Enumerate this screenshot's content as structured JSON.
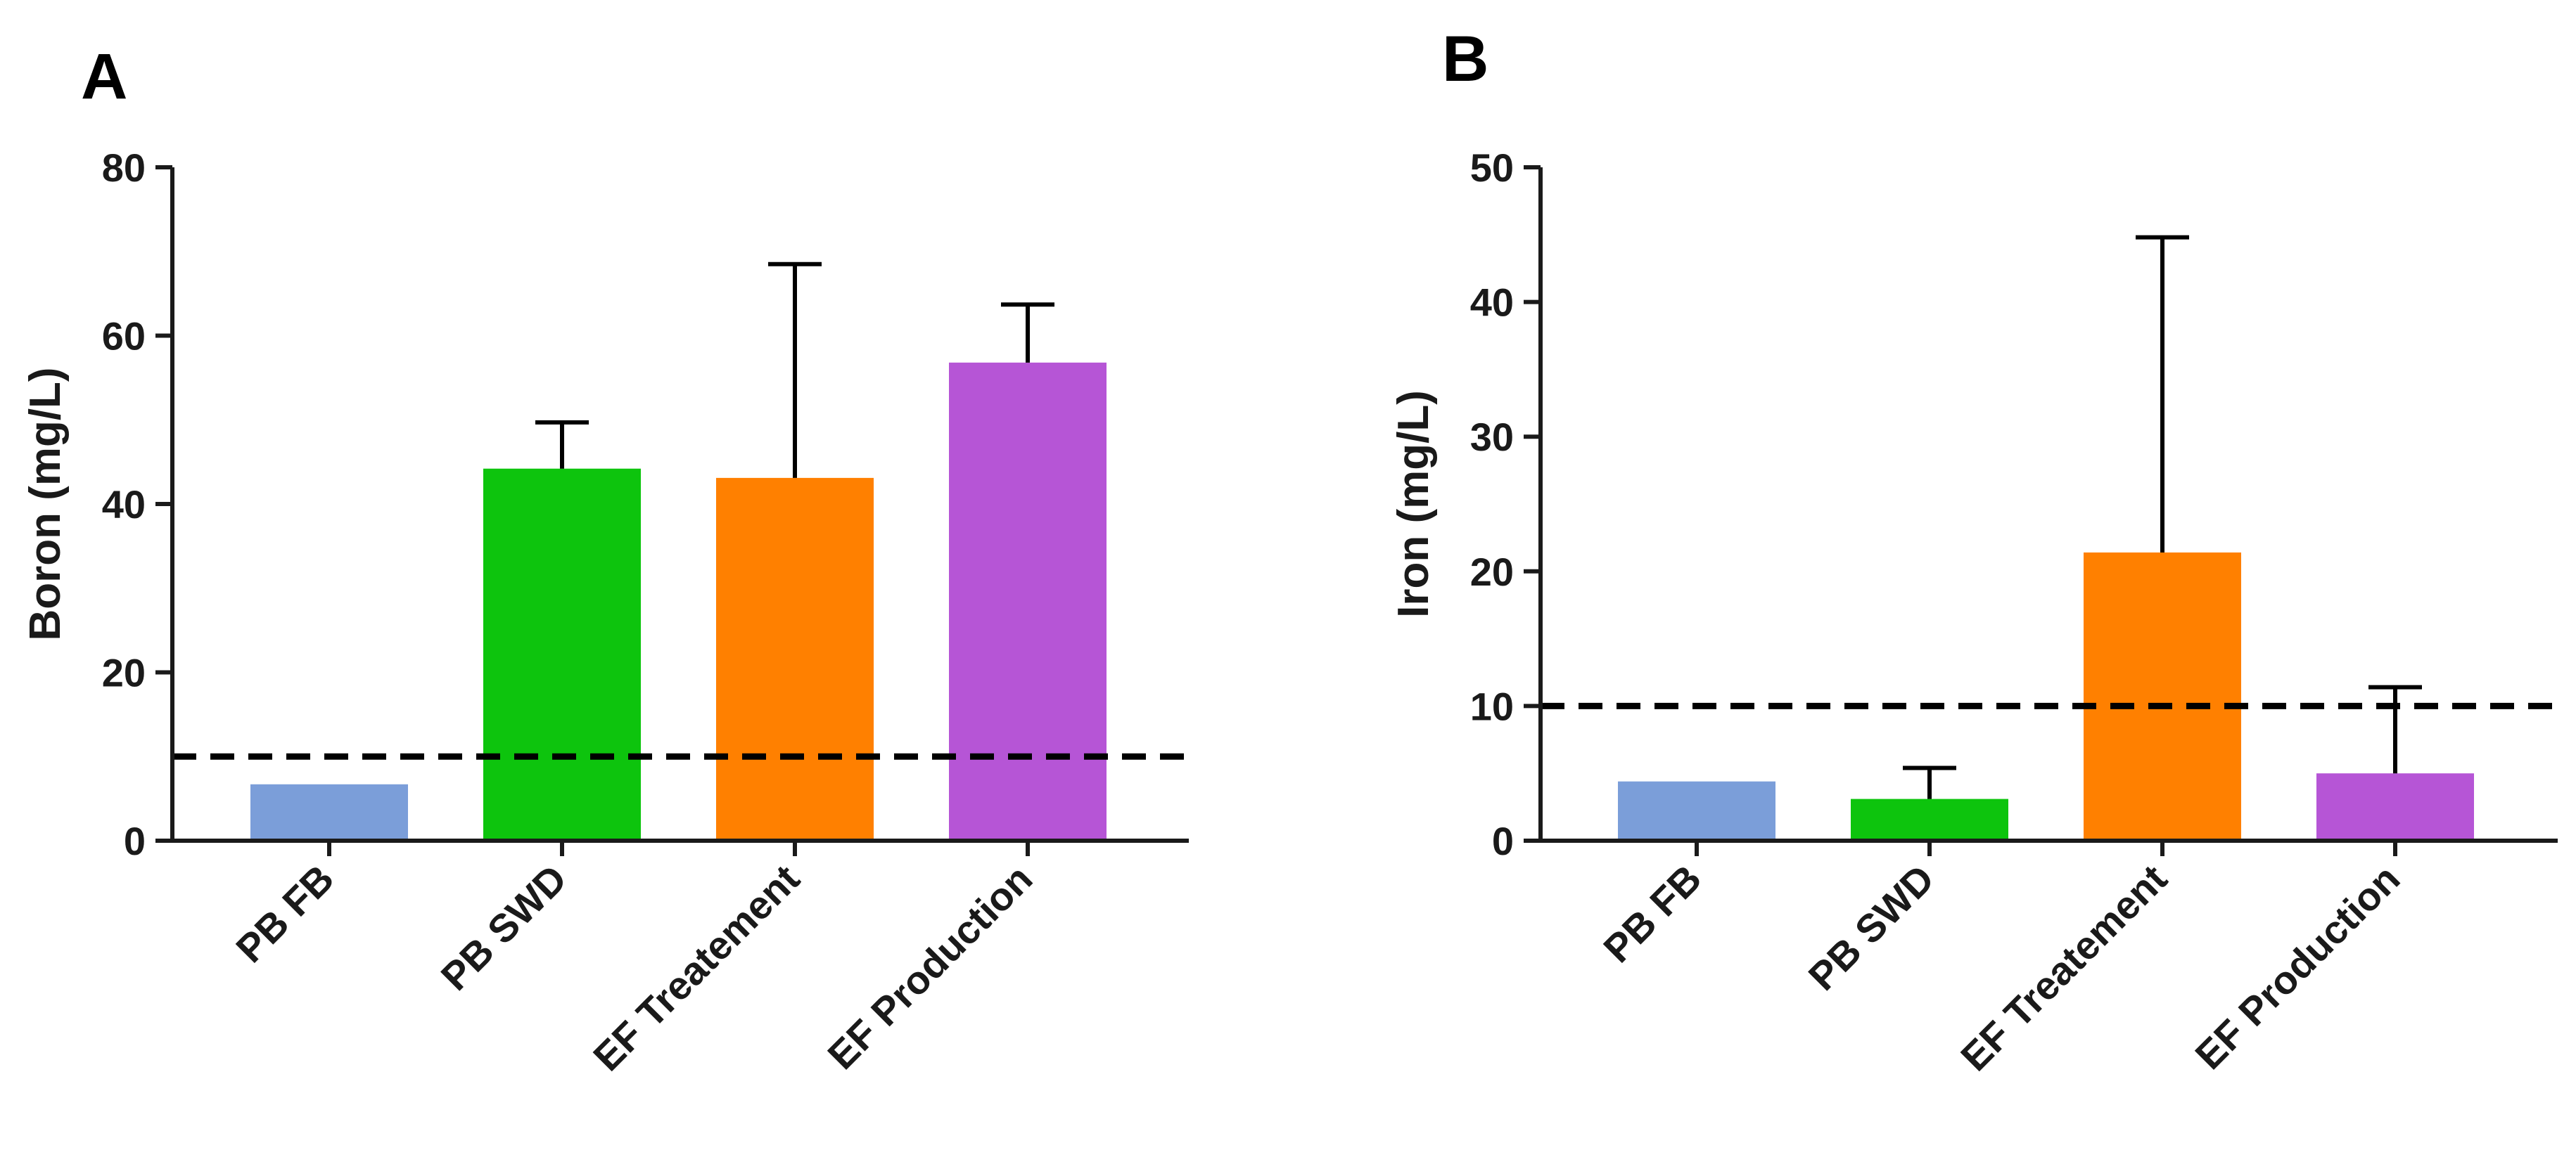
{
  "chart_data": [
    {
      "panel": "A",
      "type": "bar",
      "title": "",
      "xlabel": "",
      "ylabel": "Boron (mg/L)",
      "ylim": [
        0,
        80
      ],
      "yticks": [
        0,
        20,
        40,
        60,
        80
      ],
      "reference_line": 10,
      "grid": false,
      "categories": [
        "PB FB",
        "PB SWD",
        "EF Treatement",
        "EF Production"
      ],
      "values": [
        6.7,
        44.2,
        43.1,
        56.8
      ],
      "error_upper": [
        6.7,
        49.7,
        68.5,
        63.7
      ],
      "colors": [
        "#7b9ed9",
        "#0dc40d",
        "#ff8000",
        "#b655d6"
      ]
    },
    {
      "panel": "B",
      "type": "bar",
      "title": "",
      "xlabel": "",
      "ylabel": "Iron (mg/L)",
      "ylim": [
        0,
        50
      ],
      "yticks": [
        0,
        10,
        20,
        30,
        40,
        50
      ],
      "reference_line": 10,
      "grid": false,
      "categories": [
        "PB FB",
        "PB SWD",
        "EF Treatement",
        "EF Production"
      ],
      "values": [
        4.4,
        3.1,
        21.4,
        5.0
      ],
      "error_upper": [
        4.4,
        5.4,
        44.8,
        11.4
      ],
      "colors": [
        "#7b9ed9",
        "#0dc40d",
        "#ff8000",
        "#b655d6"
      ]
    }
  ]
}
